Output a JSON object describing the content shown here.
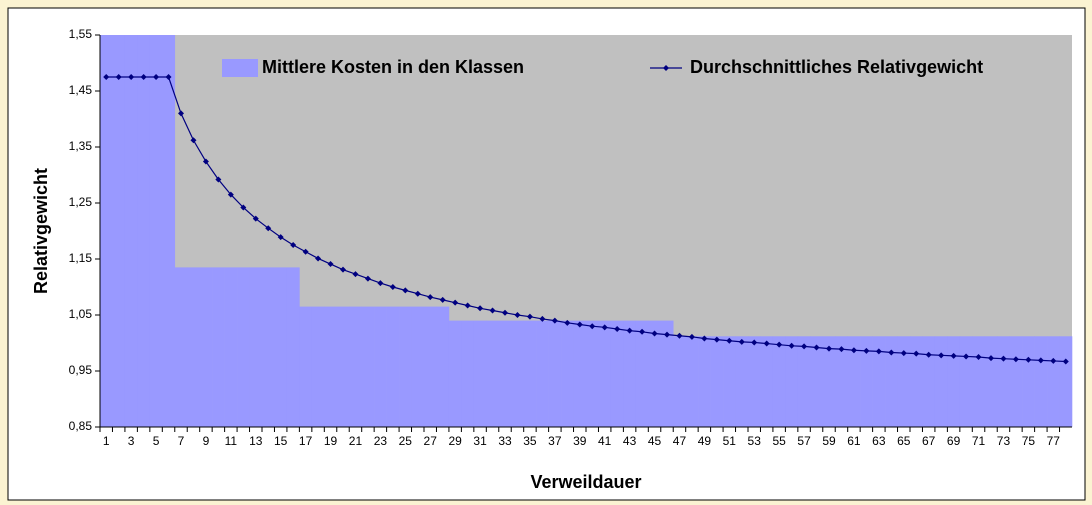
{
  "chart_data": {
    "type": "combo",
    "x_label": "Verweildauer",
    "y_label": "Relativgewicht",
    "ylim": [
      0.85,
      1.55
    ],
    "yticks": [
      {
        "value": 0.85,
        "label": "0,85"
      },
      {
        "value": 0.95,
        "label": "0,95"
      },
      {
        "value": 1.05,
        "label": "1,05"
      },
      {
        "value": 1.15,
        "label": "1,15"
      },
      {
        "value": 1.25,
        "label": "1,25"
      },
      {
        "value": 1.35,
        "label": "1,35"
      },
      {
        "value": 1.45,
        "label": "1,45"
      },
      {
        "value": 1.55,
        "label": "1,55"
      }
    ],
    "grid": false,
    "legend": "top",
    "categories": [
      1,
      null,
      3,
      null,
      5,
      null,
      7,
      null,
      9,
      null,
      11,
      null,
      13,
      null,
      15,
      null,
      17,
      null,
      19,
      null,
      21,
      null,
      23,
      null,
      25,
      null,
      27,
      null,
      29,
      null,
      31,
      null,
      33,
      null,
      35,
      null,
      37,
      null,
      39,
      null,
      41,
      null,
      43,
      null,
      45,
      null,
      47,
      null,
      49,
      null,
      51,
      null,
      53,
      null,
      55,
      null,
      57,
      null,
      59,
      null,
      61,
      null,
      63,
      null,
      65,
      null,
      67,
      null,
      69,
      null,
      71,
      null,
      73,
      null,
      75,
      null,
      77,
      null
    ],
    "series": [
      {
        "name": "Mittlere Kosten in den Klassen",
        "type": "area",
        "color": "#9999ff",
        "values": [
          1.55,
          1.55,
          1.55,
          1.55,
          1.55,
          1.55,
          1.135,
          1.135,
          1.135,
          1.135,
          1.135,
          1.135,
          1.135,
          1.135,
          1.135,
          1.135,
          1.065,
          1.065,
          1.065,
          1.065,
          1.065,
          1.065,
          1.065,
          1.065,
          1.065,
          1.065,
          1.065,
          1.065,
          1.04,
          1.04,
          1.04,
          1.04,
          1.04,
          1.04,
          1.04,
          1.04,
          1.04,
          1.04,
          1.04,
          1.04,
          1.04,
          1.04,
          1.04,
          1.04,
          1.04,
          1.04,
          1.012,
          1.012,
          1.012,
          1.012,
          1.012,
          1.012,
          1.012,
          1.012,
          1.012,
          1.012,
          1.012,
          1.012,
          1.012,
          1.012,
          1.012,
          1.012,
          1.012,
          1.012,
          1.012,
          1.012,
          1.012,
          1.012,
          1.012,
          1.012,
          1.012,
          1.012,
          1.012,
          1.012,
          1.012,
          1.012,
          1.012,
          1.012
        ]
      },
      {
        "name": "Durchschnittliches Relativgewicht",
        "type": "line",
        "color": "#000080",
        "values": [
          1.475,
          1.475,
          1.475,
          1.475,
          1.475,
          1.475,
          1.41,
          1.362,
          1.324,
          1.292,
          1.265,
          1.242,
          1.222,
          1.205,
          1.189,
          1.175,
          1.163,
          1.151,
          1.141,
          1.131,
          1.123,
          1.115,
          1.107,
          1.1,
          1.094,
          1.088,
          1.082,
          1.077,
          1.072,
          1.067,
          1.062,
          1.058,
          1.054,
          1.05,
          1.047,
          1.043,
          1.04,
          1.036,
          1.033,
          1.03,
          1.028,
          1.025,
          1.022,
          1.02,
          1.017,
          1.015,
          1.013,
          1.011,
          1.008,
          1.006,
          1.004,
          1.002,
          1.001,
          0.999,
          0.997,
          0.995,
          0.994,
          0.992,
          0.99,
          0.989,
          0.987,
          0.986,
          0.985,
          0.983,
          0.982,
          0.981,
          0.979,
          0.978,
          0.977,
          0.976,
          0.975,
          0.973,
          0.972,
          0.971,
          0.97,
          0.969,
          0.968,
          0.967
        ]
      }
    ]
  }
}
